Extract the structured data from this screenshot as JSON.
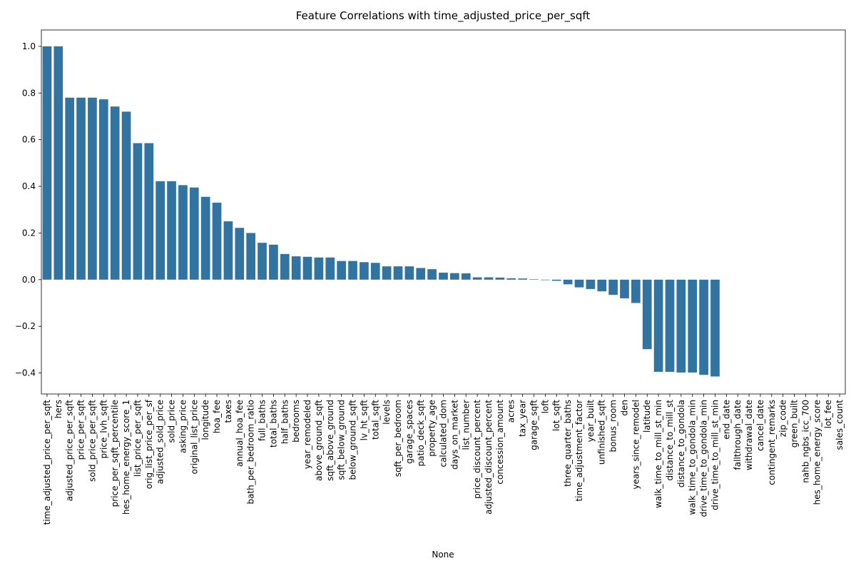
{
  "chart_data": {
    "type": "bar",
    "title": "Feature Correlations with time_adjusted_price_per_sqft",
    "xlabel": "None",
    "ylabel": "",
    "ylim": [
      -0.49,
      1.07
    ],
    "yticks": [
      1.0,
      0.8,
      0.6,
      0.4,
      0.2,
      0.0,
      -0.2,
      -0.4
    ],
    "ytick_labels": [
      "1.0",
      "0.8",
      "0.6",
      "0.4",
      "0.2",
      "0.0",
      "−0.2",
      "−0.4"
    ],
    "grid": false,
    "bar_color": "#3274a1",
    "categories": [
      "time_adjusted_price_per_sqft",
      "hers",
      "adjusted_price_per_sqft",
      "price_per_sqft",
      "sold_price_per_sqft",
      "price_lvh_sqft",
      "price_per_sqft_percentile",
      "hes_home_energy_score_1",
      "list_price_per_sqft",
      "orig_list_price_per_sf",
      "adjusted_sold_price",
      "sold_price",
      "asking_price",
      "original_list_price",
      "longitude",
      "hoa_fee",
      "taxes",
      "annual_hoa_fee",
      "bath_per_bedroom_ratio",
      "full_baths",
      "total_baths",
      "half_baths",
      "bedrooms",
      "year_remodeled",
      "above_ground_sqft",
      "sqft_above_ground",
      "sqft_below_ground",
      "below_ground_sqft",
      "lv_ht_sqft",
      "total_sqft",
      "levels",
      "sqft_per_bedroom",
      "garage_spaces",
      "patio_deck_sqft",
      "property_age",
      "calculated_dom",
      "days_on_market",
      "list_number",
      "price_discount_percent",
      "adjusted_discount_percent",
      "concession_amount",
      "acres",
      "tax_year",
      "garage_sqft",
      "loft",
      "lot_sqft",
      "three_quarter_baths",
      "time_adjustment_factor",
      "year_built",
      "unfinished_sqft",
      "bonus_room",
      "den",
      "years_since_remodel",
      "latitude",
      "walk_time_to_mill_st_min",
      "distance_to_mill_st",
      "distance_to_gondola",
      "walk_time_to_gondola_min",
      "drive_time_to_gondola_min",
      "drive_time_to_mill_st_min",
      "end_date",
      "fallthrough_date",
      "withdrawal_date",
      "cancel_date",
      "contingent_remarks",
      "zip_code",
      "green_built",
      "nahb_ngbs_icc_700",
      "hes_home_energy_score",
      "lot_fee",
      "sales_count"
    ],
    "values": [
      1.0,
      1.0,
      0.78,
      0.78,
      0.78,
      0.773,
      0.742,
      0.72,
      0.585,
      0.585,
      0.422,
      0.422,
      0.405,
      0.395,
      0.355,
      0.33,
      0.25,
      0.222,
      0.2,
      0.158,
      0.15,
      0.11,
      0.1,
      0.098,
      0.095,
      0.095,
      0.08,
      0.08,
      0.075,
      0.072,
      0.057,
      0.057,
      0.057,
      0.05,
      0.045,
      0.03,
      0.028,
      0.027,
      0.01,
      0.01,
      0.009,
      0.006,
      0.005,
      0.002,
      -0.002,
      -0.005,
      -0.02,
      -0.033,
      -0.04,
      -0.05,
      -0.065,
      -0.08,
      -0.1,
      -0.298,
      -0.395,
      -0.395,
      -0.398,
      -0.398,
      -0.408,
      -0.415,
      0,
      0,
      0,
      0,
      0,
      0,
      0,
      0,
      0,
      0,
      0
    ]
  }
}
